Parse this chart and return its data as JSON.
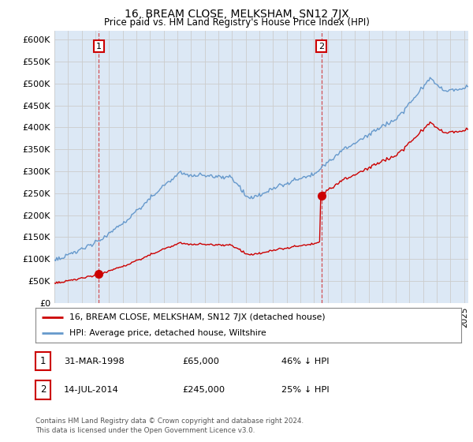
{
  "title": "16, BREAM CLOSE, MELKSHAM, SN12 7JX",
  "subtitle": "Price paid vs. HM Land Registry's House Price Index (HPI)",
  "ylim": [
    0,
    620000
  ],
  "xlim_start": 1995.0,
  "xlim_end": 2025.3,
  "yticks": [
    0,
    50000,
    100000,
    150000,
    200000,
    250000,
    300000,
    350000,
    400000,
    450000,
    500000,
    550000,
    600000
  ],
  "ytick_labels": [
    "£0",
    "£50K",
    "£100K",
    "£150K",
    "£200K",
    "£250K",
    "£300K",
    "£350K",
    "£400K",
    "£450K",
    "£500K",
    "£550K",
    "£600K"
  ],
  "purchase1_year": 1998.25,
  "purchase1_price": 65000,
  "purchase1_label": "1",
  "purchase2_year": 2014.54,
  "purchase2_price": 245000,
  "purchase2_label": "2",
  "hpi_color": "#6699cc",
  "property_color": "#cc0000",
  "vline_color": "#cc0000",
  "plot_bg_color": "#dce8f5",
  "legend_property": "16, BREAM CLOSE, MELKSHAM, SN12 7JX (detached house)",
  "legend_hpi": "HPI: Average price, detached house, Wiltshire",
  "table_row1": [
    "1",
    "31-MAR-1998",
    "£65,000",
    "46% ↓ HPI"
  ],
  "table_row2": [
    "2",
    "14-JUL-2014",
    "£245,000",
    "25% ↓ HPI"
  ],
  "footer": "Contains HM Land Registry data © Crown copyright and database right 2024.\nThis data is licensed under the Open Government Licence v3.0.",
  "background_color": "#ffffff",
  "grid_color": "#cccccc",
  "marker_box_color": "#cc0000"
}
